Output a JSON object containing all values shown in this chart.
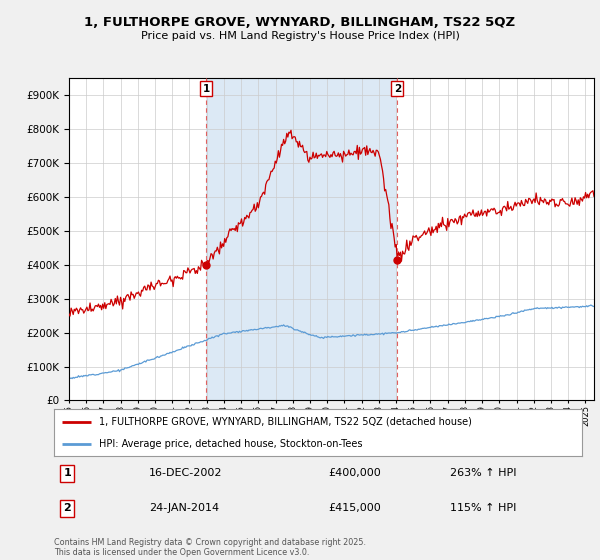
{
  "title": "1, FULTHORPE GROVE, WYNYARD, BILLINGHAM, TS22 5QZ",
  "subtitle": "Price paid vs. HM Land Registry's House Price Index (HPI)",
  "background_color": "#f0f0f0",
  "plot_bg_color": "#ffffff",
  "sale1_price": 400000,
  "sale1_label": "16-DEC-2002",
  "sale1_hpi": "263% ↑ HPI",
  "sale2_price": 415000,
  "sale2_label": "24-JAN-2014",
  "sale2_hpi": "115% ↑ HPI",
  "red_color": "#cc0000",
  "blue_color": "#5b9bd5",
  "shade_color": "#dce9f5",
  "dashed_color": "#e06060",
  "legend_label_red": "1, FULTHORPE GROVE, WYNYARD, BILLINGHAM, TS22 5QZ (detached house)",
  "legend_label_blue": "HPI: Average price, detached house, Stockton-on-Tees",
  "footnote": "Contains HM Land Registry data © Crown copyright and database right 2025.\nThis data is licensed under the Open Government Licence v3.0.",
  "sale1_x": 2002.96,
  "sale2_x": 2014.07
}
